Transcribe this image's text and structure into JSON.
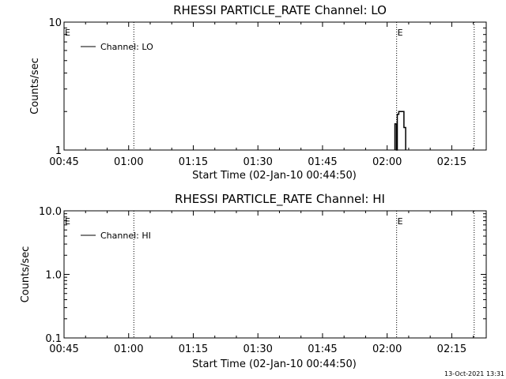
{
  "chart_data": [
    {
      "type": "line",
      "title": "RHESSI PARTICLE_RATE Channel: LO",
      "xlabel": "Start Time (02-Jan-10 00:44:50)",
      "ylabel": "Counts/sec",
      "yscale": "log",
      "ylim": [
        1,
        10
      ],
      "xlim_minutes": [
        0,
        98
      ],
      "x_ticks": [
        {
          "label": "00:45",
          "minute": 0
        },
        {
          "label": "01:00",
          "minute": 15
        },
        {
          "label": "01:15",
          "minute": 30
        },
        {
          "label": "01:30",
          "minute": 45
        },
        {
          "label": "01:45",
          "minute": 60
        },
        {
          "label": "02:00",
          "minute": 75
        },
        {
          "label": "02:15",
          "minute": 90
        }
      ],
      "y_ticks": [
        {
          "label": "1",
          "value": 1
        },
        {
          "label": "10",
          "value": 10
        }
      ],
      "minor_y_values": [
        2,
        3,
        4,
        5,
        6,
        7,
        8,
        9
      ],
      "vertical_markers": [
        {
          "minute": 16.2,
          "label": ""
        },
        {
          "minute": 77.2,
          "label": "E"
        },
        {
          "minute": 95.2,
          "label": ""
        }
      ],
      "edge_label": "E",
      "legend": "Channel: LO",
      "series": [
        {
          "name": "Channel: LO",
          "x": [
            76.8,
            76.8,
            77.15,
            77.15,
            77.35,
            77.35,
            77.7,
            77.7,
            78.9,
            78.9,
            79.3,
            79.3
          ],
          "y": [
            1,
            1.6,
            1.6,
            1,
            1,
            1.9,
            1.9,
            2.0,
            2.0,
            1.5,
            1.5,
            1
          ]
        }
      ]
    },
    {
      "type": "line",
      "title": "RHESSI PARTICLE_RATE Channel: HI",
      "xlabel": "Start Time (02-Jan-10 00:44:50)",
      "ylabel": "Counts/sec",
      "yscale": "log",
      "ylim": [
        0.1,
        10
      ],
      "xlim_minutes": [
        0,
        98
      ],
      "x_ticks": [
        {
          "label": "00:45",
          "minute": 0
        },
        {
          "label": "01:00",
          "minute": 15
        },
        {
          "label": "01:15",
          "minute": 30
        },
        {
          "label": "01:30",
          "minute": 45
        },
        {
          "label": "01:45",
          "minute": 60
        },
        {
          "label": "02:00",
          "minute": 75
        },
        {
          "label": "02:15",
          "minute": 90
        }
      ],
      "y_ticks": [
        {
          "label": "0.1",
          "value": 0.1
        },
        {
          "label": "1.0",
          "value": 1
        },
        {
          "label": "10.0",
          "value": 10
        }
      ],
      "minor_y_values": [
        0.2,
        0.3,
        0.4,
        0.5,
        0.6,
        0.7,
        0.8,
        0.9,
        2,
        3,
        4,
        5,
        6,
        7,
        8,
        9
      ],
      "vertical_markers": [
        {
          "minute": 16.2,
          "label": ""
        },
        {
          "minute": 77.2,
          "label": "E"
        },
        {
          "minute": 95.2,
          "label": ""
        }
      ],
      "edge_label": "E",
      "legend": "Channel: HI",
      "series": [
        {
          "name": "Channel: HI",
          "x": [],
          "y": []
        }
      ]
    }
  ],
  "footer": {
    "timestamp": "13-Oct-2021 13:31"
  }
}
